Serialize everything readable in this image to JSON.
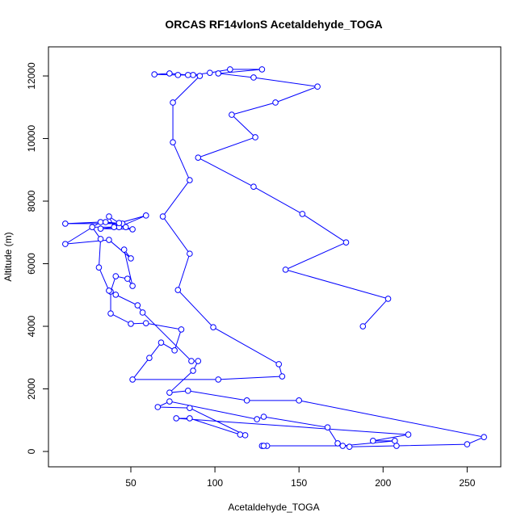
{
  "chart_data": {
    "type": "line",
    "title": "ORCAS RF14vlonS Acetaldehyde_TOGA",
    "x_label": "Acetaldehyde_TOGA",
    "y_label": "Altitude (m)",
    "color": "#0000ff",
    "x": [
      188,
      203,
      142,
      178,
      152,
      123,
      90,
      124,
      110,
      136,
      161,
      123,
      102,
      128,
      109,
      97,
      87,
      78,
      64,
      73,
      84,
      91,
      75,
      75,
      85,
      69,
      85,
      78,
      99,
      138,
      140,
      102,
      51,
      61,
      68,
      76,
      80,
      59,
      50,
      38,
      38,
      41,
      48,
      51,
      46,
      50,
      37,
      11,
      32,
      11,
      45,
      35,
      51,
      32,
      43,
      59,
      43,
      37,
      40,
      47,
      27,
      32,
      31,
      37,
      41,
      54,
      57,
      86,
      90,
      87,
      73,
      84,
      119,
      150,
      260,
      250,
      208,
      180,
      173,
      167,
      129,
      125,
      73,
      66,
      85,
      118,
      115,
      85,
      77,
      215,
      194,
      207,
      176,
      128,
      131,
      129
    ],
    "values": [
      4000,
      4880,
      5810,
      6680,
      7590,
      8460,
      9390,
      10040,
      10760,
      11150,
      11660,
      11950,
      12080,
      12210,
      12210,
      12100,
      12030,
      12030,
      12050,
      12080,
      12030,
      12000,
      11150,
      9880,
      8670,
      7510,
      6320,
      5160,
      3970,
      2790,
      2400,
      2300,
      2300,
      2990,
      3480,
      3230,
      3900,
      4100,
      4080,
      4410,
      5110,
      5600,
      5520,
      5290,
      6450,
      6170,
      6760,
      6630,
      7330,
      7280,
      7280,
      7330,
      7100,
      7120,
      7170,
      7540,
      7300,
      7510,
      7170,
      7170,
      7170,
      6790,
      5880,
      5140,
      5010,
      4670,
      4440,
      2890,
      2890,
      2580,
      1880,
      1940,
      1630,
      1630,
      460,
      230,
      180,
      150,
      260,
      770,
      1110,
      1030,
      1600,
      1420,
      1390,
      520,
      540,
      1060,
      1060,
      540,
      340,
      340,
      180,
      180,
      180,
      180
    ],
    "xlim": [
      1,
      270
    ],
    "ylim": [
      -490,
      12930
    ],
    "xticks": [
      50,
      100,
      150,
      200,
      250
    ],
    "yticks": [
      0,
      2000,
      4000,
      6000,
      8000,
      10000,
      12000
    ]
  }
}
